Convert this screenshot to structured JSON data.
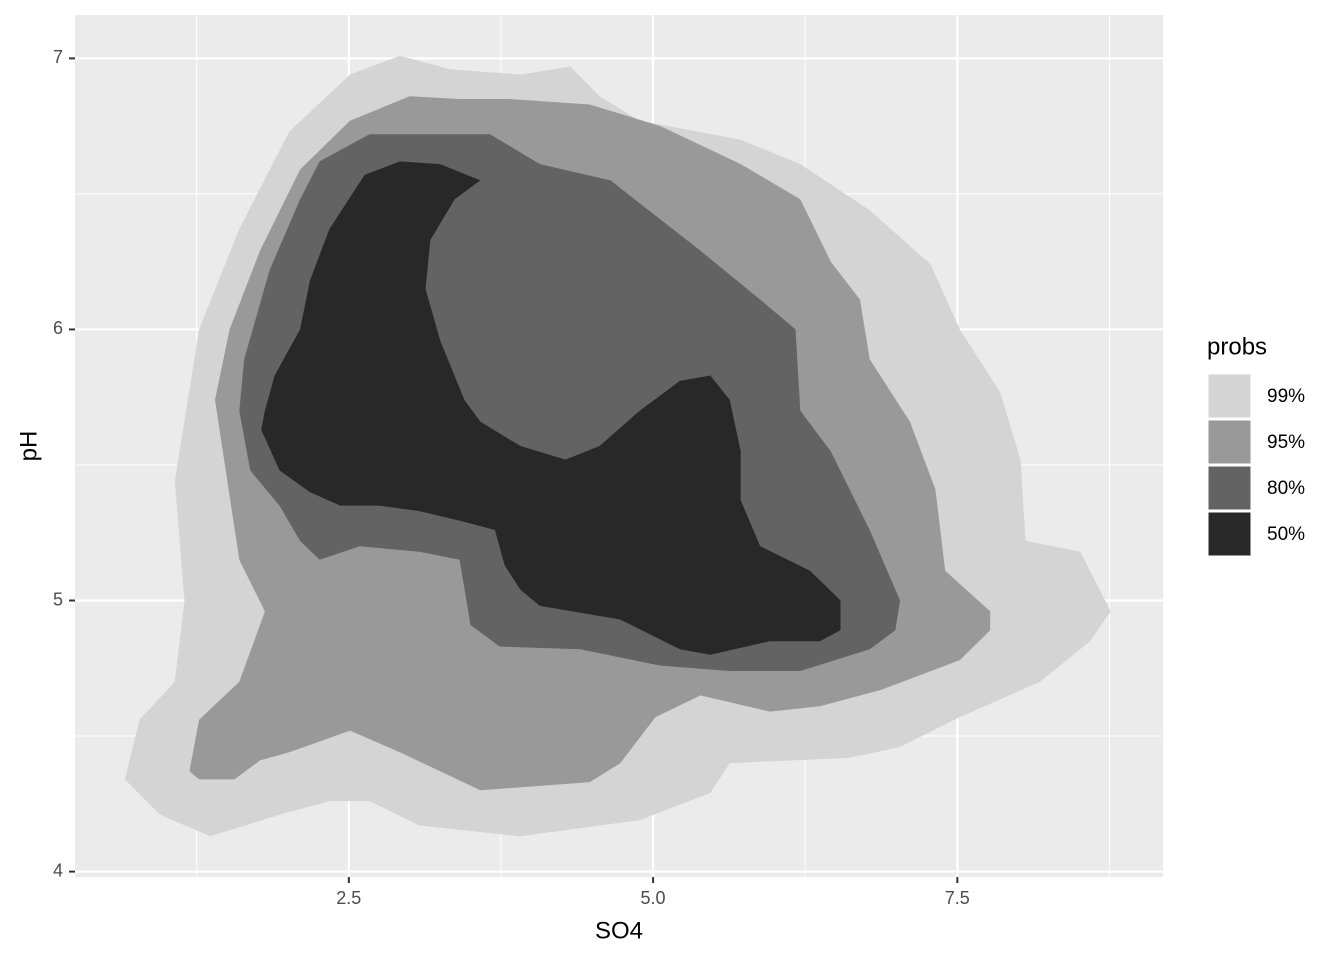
{
  "chart_data": {
    "type": "filled-contour",
    "x_label": "SO4",
    "y_label": "pH",
    "legend_title": "probs",
    "xlim": [
      0.25,
      9.19
    ],
    "ylim": [
      3.98,
      7.16
    ],
    "xticks": [
      2.5,
      5.0,
      7.5
    ],
    "yticks": [
      4,
      5,
      6,
      7
    ],
    "x_minor_breaks": [
      1.25,
      3.75,
      6.25,
      8.75
    ],
    "y_minor_breaks": [
      4.5,
      5.5,
      6.5
    ],
    "grid": true,
    "legend_position": "right",
    "panel_color": "#ebebeb",
    "series": [
      {
        "name": "99%",
        "color": "#d4d4d4",
        "x": [
          0.66,
          0.78,
          1.07,
          1.15,
          1.07,
          1.27,
          1.6,
          2.01,
          2.51,
          2.92,
          3.33,
          3.91,
          4.32,
          4.56,
          4.89,
          5.72,
          6.21,
          6.78,
          7.28,
          7.52,
          7.85,
          8.02,
          8.06,
          8.51,
          8.76,
          8.59,
          8.18,
          7.52,
          7.03,
          6.62,
          5.63,
          5.47,
          4.89,
          3.91,
          3.08,
          2.67,
          2.34,
          1.93,
          1.36,
          0.95
        ],
        "y": [
          4.34,
          4.56,
          4.7,
          5.0,
          5.44,
          6.0,
          6.37,
          6.73,
          6.94,
          7.01,
          6.96,
          6.94,
          6.97,
          6.86,
          6.77,
          6.7,
          6.61,
          6.44,
          6.24,
          6.0,
          5.77,
          5.52,
          5.22,
          5.18,
          4.96,
          4.85,
          4.7,
          4.57,
          4.46,
          4.42,
          4.4,
          4.29,
          4.19,
          4.13,
          4.17,
          4.26,
          4.26,
          4.21,
          4.13,
          4.21
        ]
      },
      {
        "name": "95%",
        "color": "#999999",
        "x": [
          1.19,
          1.27,
          1.6,
          1.81,
          1.6,
          1.4,
          1.52,
          1.77,
          2.1,
          2.51,
          3.0,
          3.41,
          3.82,
          4.48,
          5.06,
          5.72,
          6.21,
          6.46,
          6.7,
          6.78,
          7.11,
          7.32,
          7.4,
          7.77,
          7.77,
          7.52,
          6.87,
          6.37,
          5.96,
          5.39,
          5.02,
          4.73,
          4.48,
          3.58,
          3.25,
          2.92,
          2.51,
          2.26,
          2.01,
          1.77,
          1.56,
          1.27
        ],
        "y": [
          4.37,
          4.56,
          4.7,
          4.96,
          5.15,
          5.74,
          6.0,
          6.29,
          6.59,
          6.77,
          6.86,
          6.85,
          6.85,
          6.83,
          6.75,
          6.61,
          6.48,
          6.25,
          6.11,
          5.89,
          5.66,
          5.41,
          5.11,
          4.96,
          4.89,
          4.78,
          4.67,
          4.61,
          4.59,
          4.65,
          4.57,
          4.4,
          4.33,
          4.3,
          4.37,
          4.44,
          4.52,
          4.48,
          4.44,
          4.41,
          4.34,
          4.34
        ]
      },
      {
        "name": "80%",
        "color": "#636363",
        "x": [
          1.6,
          1.64,
          1.85,
          2.1,
          2.26,
          2.67,
          3.66,
          4.07,
          4.65,
          5.39,
          5.88,
          6.17,
          6.21,
          6.46,
          6.78,
          7.03,
          6.99,
          6.78,
          6.21,
          5.63,
          5.06,
          4.4,
          3.74,
          3.5,
          3.41,
          3.08,
          2.59,
          2.26,
          2.1,
          1.93,
          1.69
        ],
        "y": [
          5.7,
          5.89,
          6.22,
          6.48,
          6.62,
          6.72,
          6.72,
          6.61,
          6.55,
          6.29,
          6.11,
          6.0,
          5.7,
          5.55,
          5.26,
          5.0,
          4.89,
          4.82,
          4.74,
          4.74,
          4.76,
          4.82,
          4.83,
          4.91,
          5.15,
          5.18,
          5.2,
          5.15,
          5.22,
          5.35,
          5.48
        ]
      },
      {
        "name": "50%",
        "color": "#282828",
        "x": [
          1.81,
          1.89,
          2.1,
          2.18,
          2.34,
          2.63,
          2.92,
          3.25,
          3.58,
          3.37,
          3.17,
          3.13,
          3.25,
          3.45,
          3.58,
          3.91,
          4.28,
          4.56,
          4.89,
          5.22,
          5.47,
          5.63,
          5.72,
          5.72,
          5.88,
          6.29,
          6.54,
          6.54,
          6.37,
          5.96,
          5.47,
          5.22,
          4.73,
          4.07,
          3.91,
          3.78,
          3.7,
          3.45,
          3.08,
          2.75,
          2.43,
          2.18,
          1.93,
          1.78
        ],
        "y": [
          5.7,
          5.83,
          6.0,
          6.18,
          6.37,
          6.57,
          6.62,
          6.61,
          6.55,
          6.48,
          6.33,
          6.15,
          5.96,
          5.74,
          5.66,
          5.57,
          5.52,
          5.57,
          5.7,
          5.81,
          5.83,
          5.74,
          5.55,
          5.37,
          5.2,
          5.11,
          5.0,
          4.89,
          4.85,
          4.85,
          4.8,
          4.82,
          4.93,
          4.98,
          5.04,
          5.13,
          5.26,
          5.29,
          5.33,
          5.35,
          5.35,
          5.4,
          5.48,
          5.63
        ]
      }
    ]
  }
}
